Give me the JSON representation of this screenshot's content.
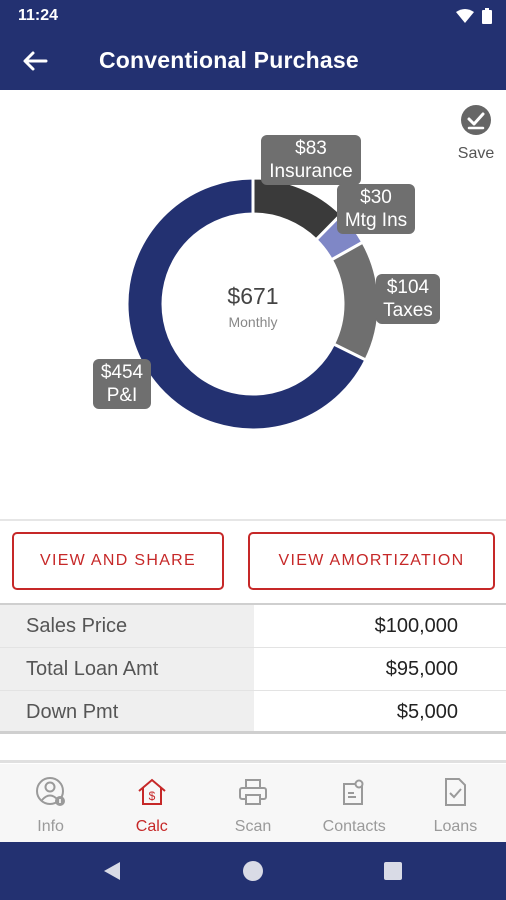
{
  "status": {
    "time": "11:24"
  },
  "header": {
    "title": "Conventional Purchase"
  },
  "save": {
    "label": "Save"
  },
  "chart_data": {
    "type": "pie",
    "center_value": "$671",
    "center_label": "Monthly",
    "slices": [
      {
        "name": "P&I",
        "value": 454,
        "label_amount": "$454",
        "color": "#233171"
      },
      {
        "name": "Insurance",
        "value": 83,
        "label_amount": "$83",
        "color": "#3a3a3a"
      },
      {
        "name": "Mtg Ins",
        "value": 30,
        "label_amount": "$30",
        "color": "#7f87c6"
      },
      {
        "name": "Taxes",
        "value": 104,
        "label_amount": "$104",
        "color": "#6f6f6f"
      }
    ]
  },
  "actions": {
    "view_share": "VIEW AND SHARE",
    "view_amortization": "VIEW AMORTIZATION"
  },
  "summary": {
    "rows": [
      {
        "label": "Sales Price",
        "value": "$100,000"
      },
      {
        "label": "Total Loan Amt",
        "value": "$95,000"
      },
      {
        "label": "Down Pmt",
        "value": "$5,000"
      }
    ]
  },
  "nav": {
    "items": [
      {
        "label": "Info",
        "icon": "user-info-icon"
      },
      {
        "label": "Calc",
        "icon": "house-dollar-icon",
        "active": true
      },
      {
        "label": "Scan",
        "icon": "printer-icon"
      },
      {
        "label": "Contacts",
        "icon": "contacts-icon"
      },
      {
        "label": "Loans",
        "icon": "document-check-icon"
      }
    ]
  }
}
